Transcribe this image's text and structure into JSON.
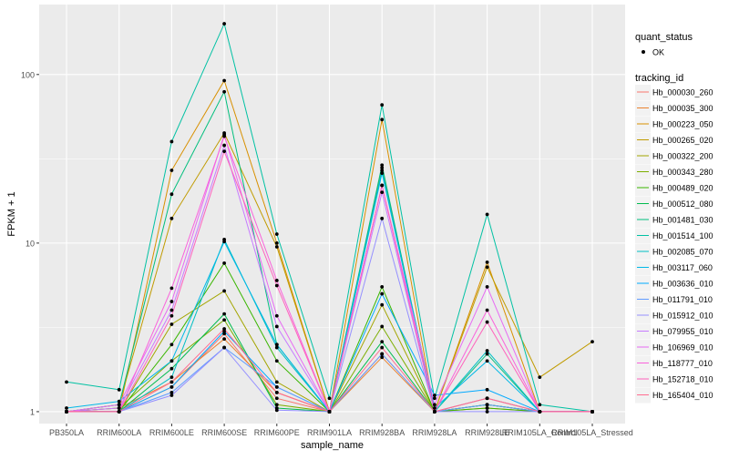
{
  "chart_data": {
    "type": "line",
    "xlabel": "sample_name",
    "ylabel": "FPKM + 1",
    "yscale": "log10",
    "ylim": [
      0.85,
      260
    ],
    "yticks": [
      1,
      10,
      100
    ],
    "grid": true,
    "legend_position": "right",
    "categories": [
      "PB350LA",
      "RRIM600LA",
      "RRIM600LE",
      "RRIM600SE",
      "RRIM600PE",
      "RRIM901LA",
      "RRIM928BA",
      "RRIM928LA",
      "RRIM928LE",
      "RRIM105LA_Control",
      "RRIM105LA_Stressed"
    ],
    "quant_legend": {
      "title": "quant_status",
      "entries": [
        "OK"
      ]
    },
    "series": [
      {
        "name": "Hb_000030_260",
        "color": "#F8766D",
        "values": [
          1.0,
          1.0,
          1.4,
          2.9,
          1.2,
          1.0,
          2.2,
          1.0,
          1.1,
          1.0,
          1.0
        ]
      },
      {
        "name": "Hb_000035_300",
        "color": "#EA8331",
        "values": [
          1.0,
          1.05,
          1.5,
          2.7,
          1.3,
          1.0,
          2.1,
          1.0,
          1.05,
          1.0,
          1.0
        ]
      },
      {
        "name": "Hb_000223_050",
        "color": "#D89000",
        "values": [
          1.0,
          1.0,
          27,
          92,
          10.0,
          1.0,
          54,
          1.0,
          7.7,
          1.0,
          1.0
        ]
      },
      {
        "name": "Hb_000265_020",
        "color": "#C09B00",
        "values": [
          1.0,
          1.1,
          14.0,
          45,
          9.5,
          1.0,
          28,
          1.0,
          7.2,
          1.6,
          2.6
        ]
      },
      {
        "name": "Hb_000322_200",
        "color": "#A3A500",
        "values": [
          1.0,
          1.0,
          3.3,
          5.2,
          1.5,
          1.0,
          4.3,
          1.0,
          1.2,
          1.0,
          1.0
        ]
      },
      {
        "name": "Hb_000343_280",
        "color": "#7CAE00",
        "values": [
          1.0,
          1.05,
          2.0,
          3.5,
          1.1,
          1.0,
          3.2,
          1.0,
          1.1,
          1.0,
          1.0
        ]
      },
      {
        "name": "Hb_000489_020",
        "color": "#39B600",
        "values": [
          1.0,
          1.0,
          2.5,
          7.6,
          2.0,
          1.0,
          5.5,
          1.0,
          1.05,
          1.0,
          1.0
        ]
      },
      {
        "name": "Hb_000512_080",
        "color": "#00BB4E",
        "values": [
          1.0,
          1.0,
          1.8,
          3.8,
          1.05,
          1.0,
          2.6,
          1.0,
          1.1,
          1.0,
          1.0
        ]
      },
      {
        "name": "Hb_001481_030",
        "color": "#00BF7D",
        "values": [
          1.0,
          1.1,
          19.5,
          79,
          2.5,
          1.0,
          29,
          1.0,
          2.2,
          1.0,
          1.0
        ]
      },
      {
        "name": "Hb_001514_100",
        "color": "#00C1A3",
        "values": [
          1.5,
          1.35,
          40,
          200,
          11.3,
          1.2,
          66,
          1.2,
          14.8,
          1.1,
          1.0
        ]
      },
      {
        "name": "Hb_002085_070",
        "color": "#00BFC4",
        "values": [
          1.0,
          1.0,
          1.6,
          10.5,
          2.4,
          1.0,
          27,
          1.0,
          2.3,
          1.0,
          1.0
        ]
      },
      {
        "name": "Hb_003117_060",
        "color": "#00B8E7",
        "values": [
          1.05,
          1.15,
          2.0,
          10.2,
          2.5,
          1.0,
          26,
          1.05,
          2.0,
          1.0,
          1.0
        ]
      },
      {
        "name": "Hb_003636_010",
        "color": "#00A9FF",
        "values": [
          1.0,
          1.0,
          1.4,
          3.0,
          1.4,
          1.0,
          5.0,
          1.25,
          1.35,
          1.0,
          1.0
        ]
      },
      {
        "name": "Hb_011791_010",
        "color": "#619CFF",
        "values": [
          1.0,
          1.0,
          1.3,
          2.4,
          1.4,
          1.0,
          2.2,
          1.0,
          1.1,
          1.0,
          1.0
        ]
      },
      {
        "name": "Hb_015912_010",
        "color": "#9590FF",
        "values": [
          1.0,
          1.0,
          1.25,
          2.4,
          1.02,
          1.0,
          14.0,
          1.0,
          1.0,
          1.0,
          1.0
        ]
      },
      {
        "name": "Hb_079955_010",
        "color": "#C77CFF",
        "values": [
          1.0,
          1.05,
          4.0,
          38,
          3.2,
          1.0,
          20,
          1.0,
          1.2,
          1.0,
          1.0
        ]
      },
      {
        "name": "Hb_106969_010",
        "color": "#E76BF3",
        "values": [
          1.0,
          1.1,
          4.5,
          44,
          3.7,
          1.0,
          22,
          1.1,
          5.5,
          1.0,
          1.0
        ]
      },
      {
        "name": "Hb_118777_010",
        "color": "#FA62DB",
        "values": [
          1.0,
          1.0,
          5.4,
          43,
          6.0,
          1.0,
          22,
          1.0,
          4.0,
          1.0,
          1.0
        ]
      },
      {
        "name": "Hb_152718_010",
        "color": "#FF62BC",
        "values": [
          1.0,
          1.0,
          3.7,
          35,
          5.6,
          1.0,
          22,
          1.0,
          3.4,
          1.0,
          1.0
        ]
      },
      {
        "name": "Hb_165404_010",
        "color": "#FF6C91",
        "values": [
          1.0,
          1.0,
          1.5,
          3.1,
          1.3,
          1.0,
          2.4,
          1.0,
          1.2,
          1.0,
          1.0
        ]
      }
    ]
  }
}
